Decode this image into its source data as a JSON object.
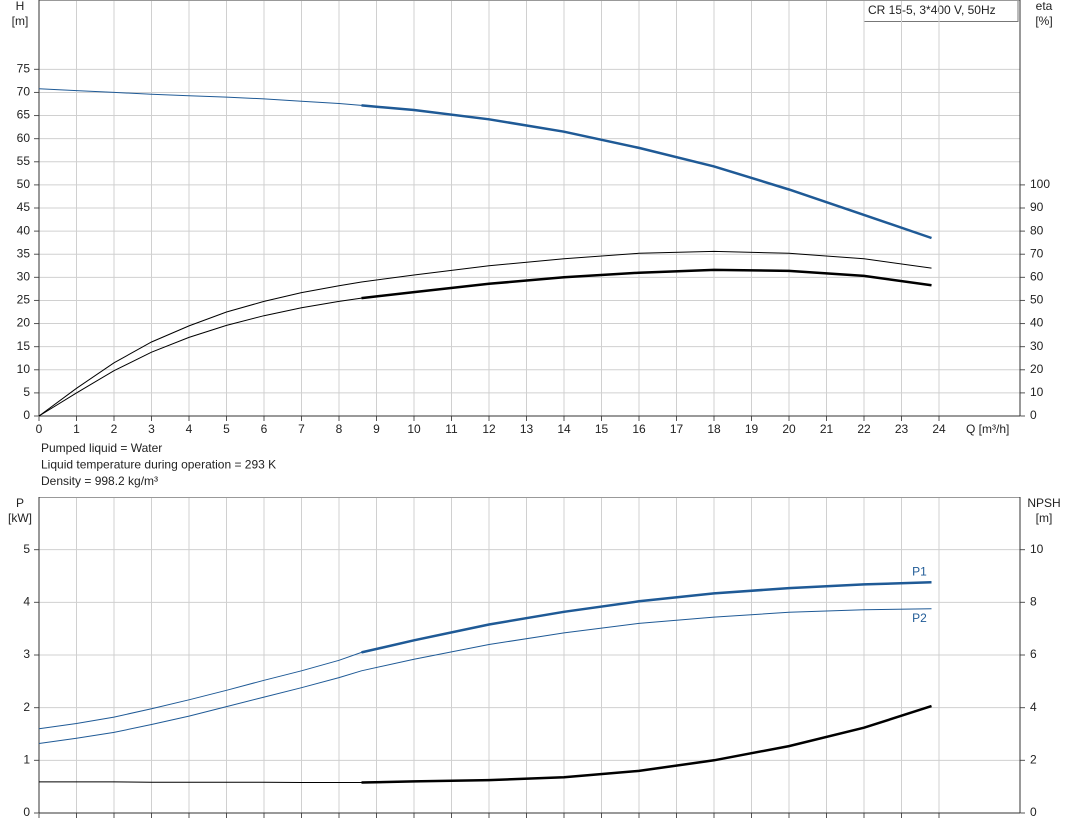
{
  "chart_data": [
    {
      "type": "line",
      "title": "CR 15-5, 3*400 V, 50Hz",
      "ylabel": "H",
      "yunit": "[m]",
      "y2label": "eta",
      "y2unit": "[%]",
      "xlabel": "Q [m³/h]",
      "xlim": [
        0,
        26.16
      ],
      "xticks": [
        0,
        1,
        2,
        3,
        4,
        5,
        6,
        7,
        8,
        9,
        10,
        11,
        12,
        13,
        14,
        15,
        16,
        17,
        18,
        19,
        20,
        21,
        22,
        23,
        24
      ],
      "ylim": [
        0,
        90
      ],
      "yticks": [
        0,
        5,
        10,
        15,
        20,
        25,
        30,
        35,
        40,
        45,
        50,
        55,
        60,
        65,
        70,
        75
      ],
      "y2lim": [
        0,
        180
      ],
      "y2ticks": [
        0,
        10,
        20,
        30,
        40,
        50,
        60,
        70,
        80,
        90,
        100
      ],
      "grid": true,
      "x": [
        0,
        1,
        2,
        3,
        4,
        5,
        6,
        7,
        8,
        8.6,
        10,
        12,
        14,
        16,
        18,
        20,
        22,
        23.8
      ],
      "series": [
        {
          "color": "#1f5a96",
          "bold_from": 8.6,
          "values": [
            70.8,
            70.4,
            70.0,
            69.6,
            69.3,
            69.0,
            68.6,
            68.1,
            67.6,
            67.2,
            66.2,
            64.2,
            61.5,
            58.0,
            54.0,
            49.0,
            43.5,
            38.5
          ]
        },
        {
          "color": "#000000",
          "axis": "y2",
          "values": [
            0,
            12,
            23,
            32,
            39,
            45,
            49.6,
            53.4,
            56.4,
            58,
            61,
            65,
            68,
            70.4,
            71.2,
            70.4,
            68,
            64
          ]
        },
        {
          "color": "#000000",
          "axis": "y2",
          "bold_from": 8.6,
          "values": [
            0,
            10,
            19.6,
            27.6,
            34,
            39.2,
            43.4,
            46.8,
            49.6,
            51,
            53.6,
            57.2,
            60,
            62,
            63.2,
            62.8,
            60.6,
            56.6
          ]
        }
      ],
      "annotations": [
        "Pumped liquid = Water",
        "Liquid temperature during operation = 293 K",
        "Density = 998.2 kg/m³"
      ]
    },
    {
      "type": "line",
      "ylabel": "P",
      "yunit": "[kW]",
      "y2label": "NPSH",
      "y2unit": "[m]",
      "xlim": [
        0,
        26.16
      ],
      "ylim": [
        0,
        6
      ],
      "yticks": [
        0,
        1,
        2,
        3,
        4,
        5
      ],
      "y2lim": [
        0,
        12
      ],
      "y2ticks": [
        0,
        2,
        4,
        6,
        8,
        10
      ],
      "grid": true,
      "x": [
        0,
        1,
        2,
        3,
        4,
        5,
        6,
        7,
        8,
        8.6,
        10,
        12,
        14,
        16,
        18,
        20,
        22,
        23.8
      ],
      "series": [
        {
          "name": "P1",
          "color": "#1f5a96",
          "bold_from": 8.6,
          "values": [
            1.6,
            1.7,
            1.82,
            1.98,
            2.15,
            2.33,
            2.52,
            2.7,
            2.9,
            3.05,
            3.28,
            3.58,
            3.82,
            4.02,
            4.17,
            4.27,
            4.34,
            4.38
          ]
        },
        {
          "name": "P2",
          "color": "#1f5a96",
          "values": [
            1.32,
            1.42,
            1.53,
            1.68,
            1.84,
            2.02,
            2.2,
            2.38,
            2.57,
            2.7,
            2.92,
            3.2,
            3.42,
            3.6,
            3.72,
            3.81,
            3.86,
            3.88
          ]
        },
        {
          "color": "#000000",
          "axis": "y2",
          "bold_from": 8.6,
          "values": [
            1.18,
            1.18,
            1.18,
            1.17,
            1.17,
            1.17,
            1.17,
            1.16,
            1.16,
            1.16,
            1.2,
            1.25,
            1.36,
            1.6,
            2.0,
            2.54,
            3.24,
            4.06
          ]
        }
      ]
    }
  ]
}
